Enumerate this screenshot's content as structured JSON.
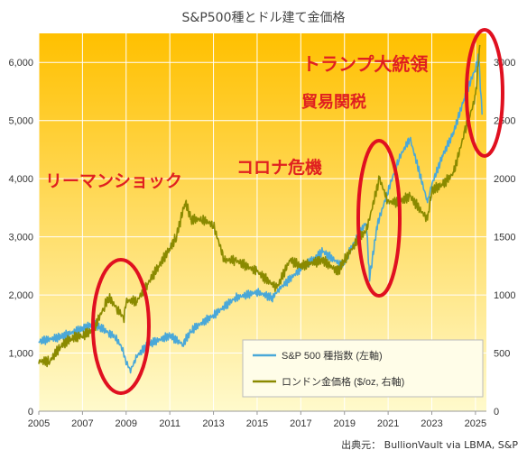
{
  "chart_data": {
    "type": "line",
    "title": "S&P500種とドル建て金価格",
    "x_range": [
      2005,
      2025.5
    ],
    "x_ticks": [
      "2005",
      "2007",
      "2009",
      "2011",
      "2013",
      "2015",
      "2017",
      "2019",
      "2021",
      "2023",
      "2025"
    ],
    "y_left": {
      "range": [
        0,
        6500
      ],
      "ticks": [
        "0",
        "1,000",
        "2,000",
        "3,000",
        "4,000",
        "5,000",
        "6,000"
      ]
    },
    "y_right": {
      "range": [
        0,
        3250
      ],
      "ticks": [
        "0",
        "500",
        "1000",
        "1500",
        "2000",
        "2500",
        "3000"
      ]
    },
    "series": [
      {
        "name": "S&P 500 種指数 (左軸)",
        "axis": "left",
        "color": "#4aa8d8",
        "x": [
          2005,
          2006,
          2007,
          2007.5,
          2007.8,
          2008.2,
          2008.5,
          2008.8,
          2009.0,
          2009.2,
          2009.5,
          2010,
          2011,
          2011.6,
          2012,
          2013,
          2014,
          2015,
          2015.7,
          2016,
          2017,
          2018,
          2018.9,
          2019.5,
          2020.0,
          2020.15,
          2020.25,
          2020.5,
          2021,
          2021.5,
          2022,
          2022.8,
          2023,
          2023.5,
          2024,
          2024.5,
          2025,
          2025.15,
          2025.3
        ],
        "y": [
          1200,
          1280,
          1420,
          1500,
          1450,
          1350,
          1280,
          1100,
          850,
          700,
          950,
          1150,
          1300,
          1150,
          1400,
          1650,
          1950,
          2050,
          1950,
          2100,
          2450,
          2750,
          2500,
          2950,
          3250,
          2300,
          2550,
          3200,
          3800,
          4350,
          4700,
          3600,
          3900,
          4400,
          4800,
          5400,
          5900,
          6100,
          5100
        ]
      },
      {
        "name": "ロンドン金価格 ($/oz, 右軸)",
        "axis": "right",
        "color": "#8a8a00",
        "x": [
          2005,
          2005.5,
          2006,
          2006.5,
          2007,
          2007.5,
          2008,
          2008.2,
          2008.6,
          2008.9,
          2009,
          2009.5,
          2010,
          2010.5,
          2011,
          2011.3,
          2011.7,
          2012,
          2012.5,
          2013,
          2013.5,
          2014,
          2015,
          2015.9,
          2016.5,
          2017,
          2018,
          2018.7,
          2019,
          2019.7,
          2020,
          2020.6,
          2021,
          2021.5,
          2022,
          2022.8,
          2023,
          2023.5,
          2024,
          2024.5,
          2025,
          2025.2
        ],
        "y": [
          430,
          430,
          560,
          630,
          650,
          700,
          900,
          980,
          880,
          800,
          950,
          950,
          1100,
          1250,
          1400,
          1500,
          1800,
          1650,
          1650,
          1600,
          1300,
          1300,
          1200,
          1060,
          1300,
          1250,
          1300,
          1200,
          1300,
          1500,
          1550,
          2000,
          1800,
          1800,
          1850,
          1650,
          1900,
          1950,
          2050,
          2400,
          2700,
          3150
        ]
      }
    ],
    "annotations": [
      "リーマンショック",
      "コロナ危機",
      "貿易関税",
      "トランプ大統領"
    ],
    "legend_position": "bottom-right",
    "grid": true,
    "background_gradient": [
      "#ffc000",
      "#fffacc"
    ]
  },
  "source": "出典元： BullionVault via LBMA, S&P"
}
